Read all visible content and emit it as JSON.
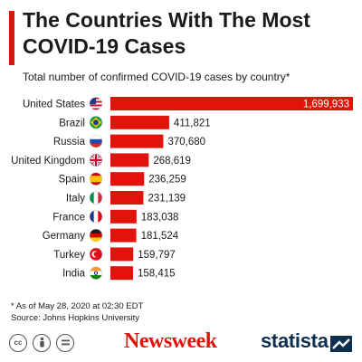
{
  "header": {
    "title": "The Countries With The Most COVID-19 Cases",
    "subtitle": "Total number of confirmed COVID-19 cases by country*"
  },
  "chart_data": {
    "type": "bar",
    "orientation": "horizontal",
    "categories": [
      "United States",
      "Brazil",
      "Russia",
      "United Kingdom",
      "Spain",
      "Italy",
      "France",
      "Germany",
      "Turkey",
      "India"
    ],
    "values": [
      1699933,
      411821,
      370680,
      268619,
      236259,
      231139,
      183038,
      181524,
      159797,
      158415
    ],
    "value_labels": [
      "1,699,933",
      "411,821",
      "370,680",
      "268,619",
      "236,259",
      "231,139",
      "183,038",
      "181,524",
      "159,797",
      "158,415"
    ],
    "title": "The Countries With The Most COVID-19 Cases",
    "subtitle": "Total number of confirmed COVID-19 cases by country*",
    "xlim": [
      0,
      1699933
    ],
    "grid": false,
    "legend": "none",
    "bar_color": "#e3120b",
    "flag_icons": [
      "us-flag-icon",
      "brazil-flag-icon",
      "russia-flag-icon",
      "uk-flag-icon",
      "spain-flag-icon",
      "italy-flag-icon",
      "france-flag-icon",
      "germany-flag-icon",
      "turkey-flag-icon",
      "india-flag-icon"
    ]
  },
  "footer": {
    "note": "* As of May 28, 2020 at 02:30 EDT",
    "source": "Source: Johns Hopkins University",
    "brand_newsweek": "Newsweek",
    "brand_statista": "statista",
    "cc_icons": [
      "cc-icon",
      "attribution-icon",
      "no-derivatives-icon"
    ]
  },
  "colors": {
    "accent": "#e3120b",
    "text": "#1a1a1a",
    "statista_navy": "#0f2f4f"
  }
}
